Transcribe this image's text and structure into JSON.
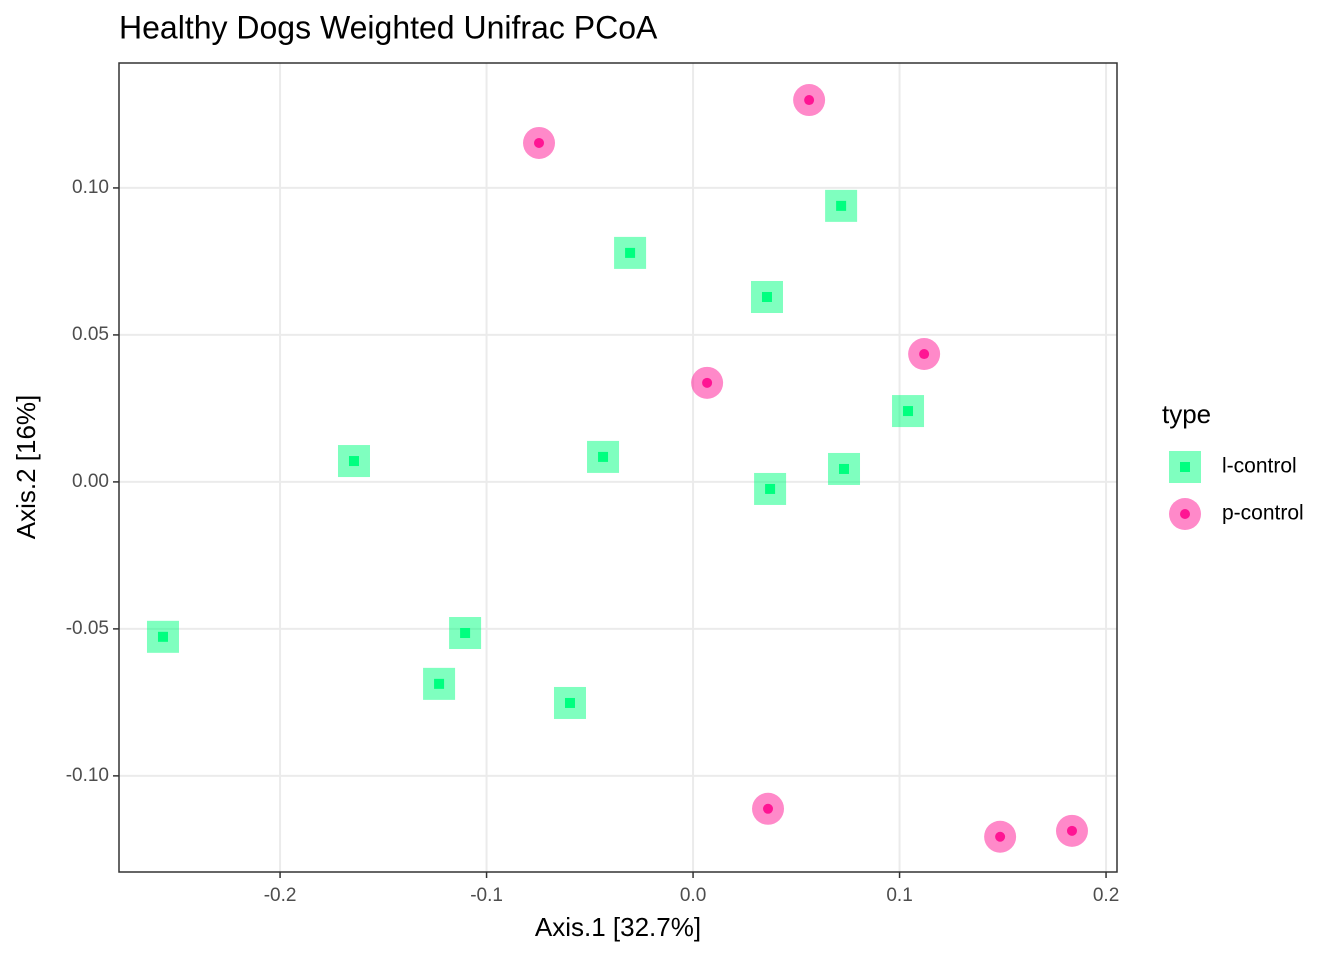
{
  "chart_data": {
    "type": "scatter",
    "title": "Healthy Dogs Weighted Unifrac PCoA",
    "xlabel": "Axis.1   [32.7%]",
    "ylabel": "Axis.2   [16%]",
    "legend_title": "type",
    "legend": "right",
    "grid": true,
    "xlim": [
      -0.278,
      0.2053
    ],
    "ylim": [
      -0.1327,
      0.1425
    ],
    "xticks": [
      -0.2,
      -0.1,
      {
        "value": 0,
        "label": "0.0"
      },
      0.1,
      0.2
    ],
    "yticks": [
      {
        "value": -0.1,
        "label": "-0.10"
      },
      -0.05,
      {
        "value": 0,
        "label": "0.00"
      },
      0.05,
      {
        "value": 0.1,
        "label": "0.10"
      }
    ],
    "series": [
      {
        "name": "l-control",
        "color": "#00ff7f",
        "marker": "square",
        "x": [
          -0.2567,
          -0.1642,
          -0.123,
          -0.1104,
          -0.0596,
          -0.0436,
          -0.0305,
          0.0358,
          0.0373,
          0.0717,
          0.0731,
          0.1041
        ],
        "values": [
          -0.0527,
          0.0071,
          -0.0687,
          -0.0514,
          -0.0752,
          0.0085,
          0.0779,
          0.0629,
          -0.0024,
          0.0939,
          0.0044,
          0.0241
        ]
      },
      {
        "name": "p-control",
        "color": "#ff1493",
        "marker": "circle",
        "x": [
          -0.0746,
          0.0562,
          0.0068,
          0.1119,
          0.0363,
          0.1487,
          0.1835
        ],
        "values": [
          0.1153,
          0.1299,
          0.0337,
          0.0435,
          -0.1112,
          -0.1207,
          -0.1187
        ]
      }
    ]
  }
}
